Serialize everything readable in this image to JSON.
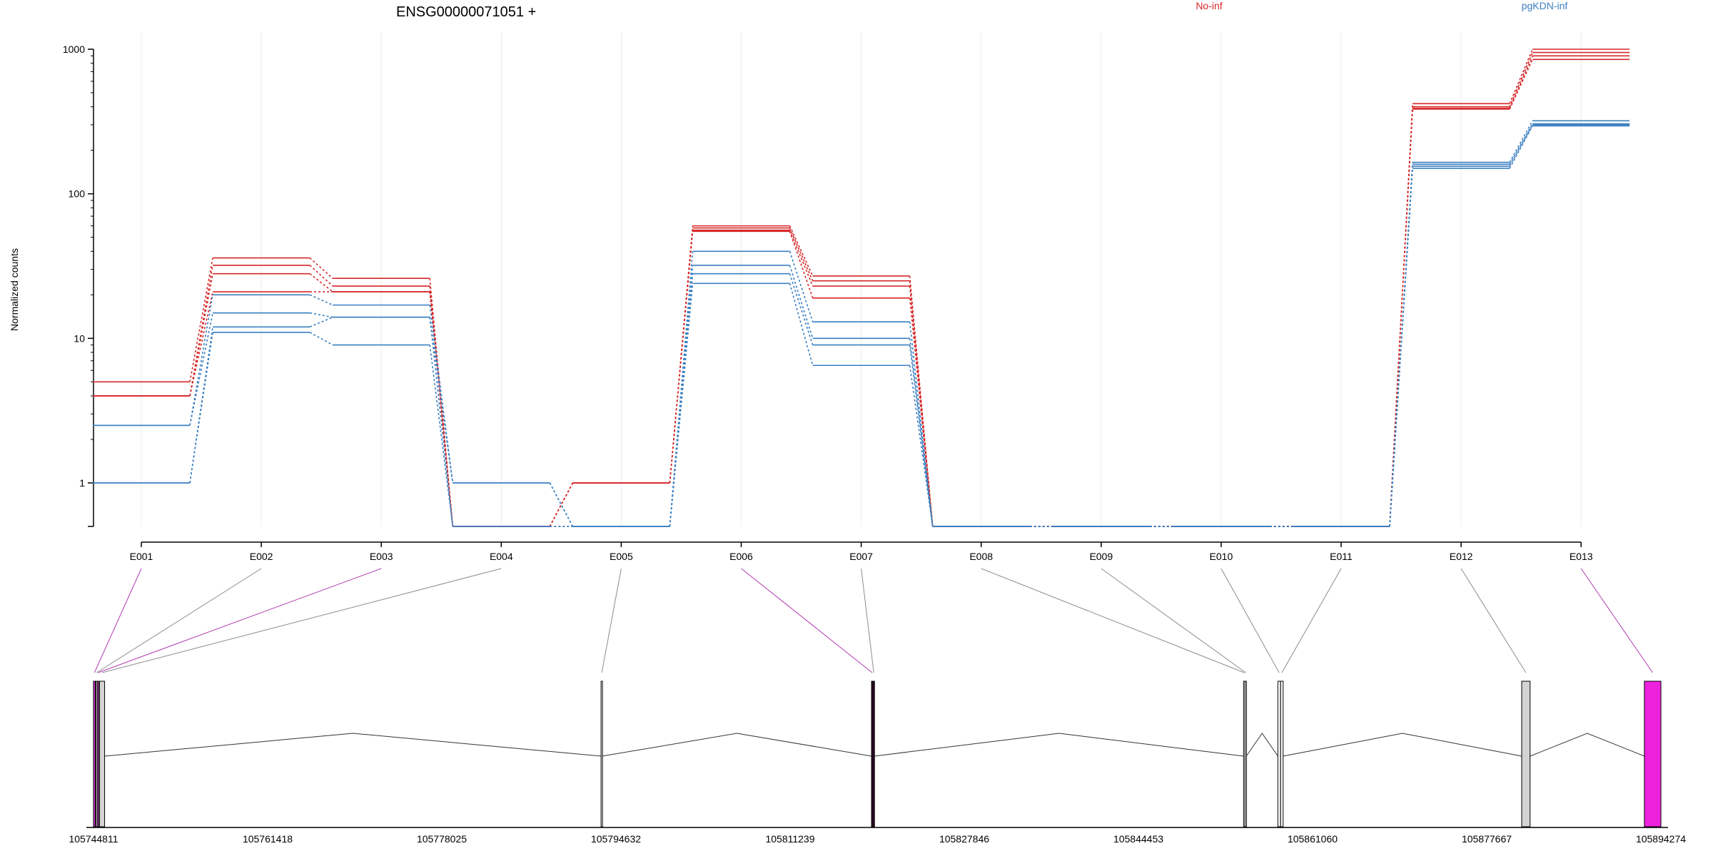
{
  "chart_data": {
    "type": "line",
    "title": "ENSG00000071051 +",
    "ylabel": "Normalized counts",
    "yscale": "log",
    "ylim": [
      0.5,
      1000
    ],
    "yticks": [
      1,
      10,
      100,
      1000
    ],
    "ytick_labels": [
      "1",
      "10",
      "100",
      "1000"
    ],
    "categories": [
      "E001",
      "E002",
      "E003",
      "E004",
      "E005",
      "E006",
      "E007",
      "E008",
      "E009",
      "E010",
      "E011",
      "E012",
      "E013"
    ],
    "legend": [
      {
        "name": "No-inf",
        "color": "#d62728"
      },
      {
        "name": "pgKDN-inf",
        "color": "#3a7fc1"
      }
    ],
    "series": [
      {
        "group": "No-inf",
        "values": [
          5,
          36,
          26,
          0.5,
          1,
          60,
          27,
          0.5,
          0.5,
          0.5,
          0.5,
          420,
          1000
        ]
      },
      {
        "group": "No-inf",
        "values": [
          4,
          32,
          23,
          0.5,
          1,
          58,
          25,
          0.5,
          0.5,
          0.5,
          0.5,
          400,
          950
        ]
      },
      {
        "group": "No-inf",
        "values": [
          4,
          28,
          21,
          0.5,
          1,
          56,
          23,
          0.5,
          0.5,
          0.5,
          0.5,
          390,
          900
        ]
      },
      {
        "group": "No-inf",
        "values": [
          4,
          21,
          21,
          0.5,
          1,
          55,
          19,
          0.5,
          0.5,
          0.5,
          0.5,
          385,
          850
        ]
      },
      {
        "group": "pgKDN-inf",
        "values": [
          2.5,
          20,
          17,
          1,
          0.5,
          40,
          13,
          0.5,
          0.5,
          0.5,
          0.5,
          165,
          320
        ]
      },
      {
        "group": "pgKDN-inf",
        "values": [
          2.5,
          15,
          14,
          1,
          0.5,
          32,
          10,
          0.5,
          0.5,
          0.5,
          0.5,
          160,
          305
        ]
      },
      {
        "group": "pgKDN-inf",
        "values": [
          1,
          12,
          14,
          0.5,
          0.5,
          28,
          9,
          0.5,
          0.5,
          0.5,
          0.5,
          155,
          300
        ]
      },
      {
        "group": "pgKDN-inf",
        "values": [
          1,
          11,
          9,
          0.5,
          0.5,
          24,
          6.5,
          0.5,
          0.5,
          0.5,
          0.5,
          150,
          295
        ]
      }
    ],
    "genomic_ticks": [
      "105744811",
      "105761418",
      "105778025",
      "105794632",
      "105811239",
      "105827846",
      "105844453",
      "105861060",
      "105877667",
      "105894274"
    ],
    "genomic_range": [
      105744811,
      105894274
    ],
    "exons": [
      {
        "id": "E001",
        "start": 105744811,
        "end": 105744990,
        "color": "#cc33cc",
        "highlight": true
      },
      {
        "id": "E002",
        "start": 105745040,
        "end": 105745150,
        "color": "#ffffff",
        "highlight": false
      },
      {
        "id": "E003",
        "start": 105745170,
        "end": 105745300,
        "color": "#cc33cc",
        "highlight": true
      },
      {
        "id": "E004",
        "start": 105745380,
        "end": 105745870,
        "color": "#d3d3d3",
        "highlight": false
      },
      {
        "id": "E005",
        "start": 105793210,
        "end": 105793320,
        "color": "#ffffff",
        "highlight": false
      },
      {
        "id": "E006",
        "start": 105819000,
        "end": 105819120,
        "color": "#4a1040",
        "highlight": true
      },
      {
        "id": "E007",
        "start": 105819150,
        "end": 105819270,
        "color": "#4a1040",
        "highlight": false
      },
      {
        "id": "E008",
        "start": 105854480,
        "end": 105854600,
        "color": "#ffffff",
        "highlight": false
      },
      {
        "id": "E009",
        "start": 105854620,
        "end": 105854740,
        "color": "#ffffff",
        "highlight": false
      },
      {
        "id": "E010",
        "start": 105857750,
        "end": 105858000,
        "color": "#ffffff",
        "highlight": false
      },
      {
        "id": "E011",
        "start": 105858010,
        "end": 105858250,
        "color": "#ffffff",
        "highlight": false
      },
      {
        "id": "E012",
        "start": 105881000,
        "end": 105881800,
        "color": "#d3d3d3",
        "highlight": false
      },
      {
        "id": "E013",
        "start": 105892700,
        "end": 105894274,
        "color": "#ee22dd",
        "highlight": true
      }
    ],
    "introns": [
      {
        "from": 105744990,
        "to": 105745040
      },
      {
        "from": 105745870,
        "to": 105793210
      },
      {
        "from": 105793320,
        "to": 105819000
      },
      {
        "from": 105819270,
        "to": 105854480
      },
      {
        "from": 105854740,
        "to": 105857750
      },
      {
        "from": 105858250,
        "to": 105881000
      },
      {
        "from": 105881800,
        "to": 105892700
      }
    ],
    "grid": true
  }
}
